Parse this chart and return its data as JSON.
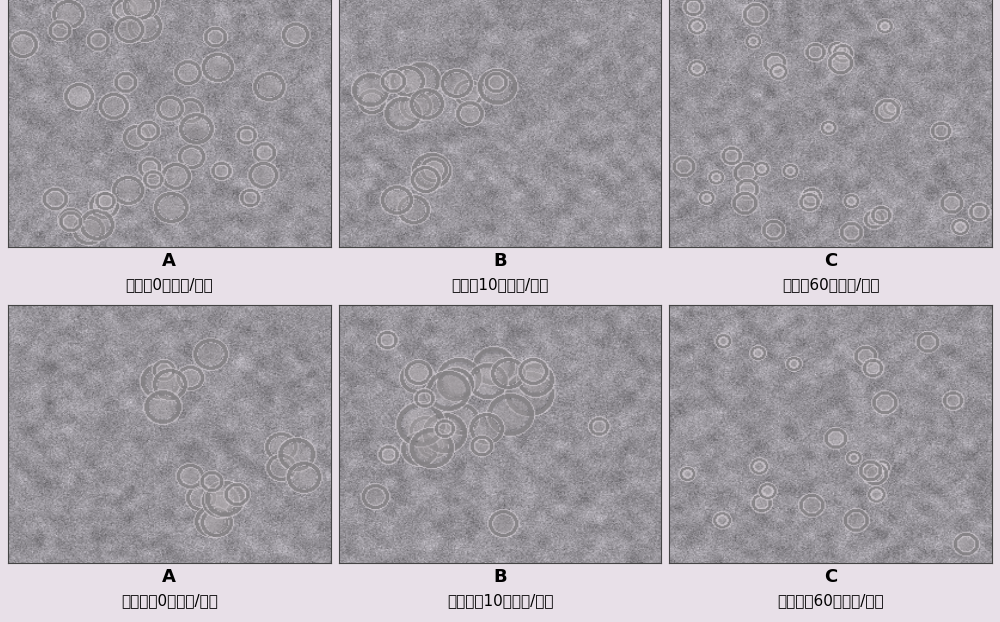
{
  "figure_width": 10.0,
  "figure_height": 6.22,
  "panel_labels_top": [
    "A",
    "B",
    "C"
  ],
  "panel_labels_bottom": [
    "A",
    "B",
    "C"
  ],
  "captions_top": [
    "乳酸（0毫摩尔/升）",
    "乳酸（10毫摩尔/升）",
    "乳酸（60毫摩尔/升）"
  ],
  "captions_bottom": [
    "乳酸钓（0毫摩尔/升）",
    "乳酸钓（10毫摩尔/升）",
    "乳酸钓（60毫摩尔/升）"
  ],
  "label_fontsize": 13,
  "caption_fontsize": 11,
  "gap_color": "#e8e0e8",
  "bold_numbers": [
    "0",
    "10",
    "60"
  ],
  "img_bg_mean": 0.58,
  "img_bg_std": 0.06
}
